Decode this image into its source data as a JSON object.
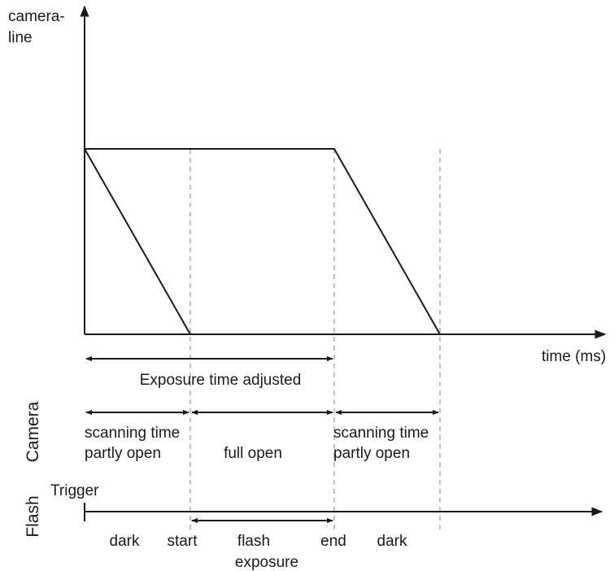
{
  "axes": {
    "y_label_line1": "camera-",
    "y_label_line2": "line",
    "x_label": "time (ms)"
  },
  "exposure": {
    "label": "Exposure time adjusted"
  },
  "camera": {
    "side_label": "Camera",
    "phase1_line1": "scanning time",
    "phase1_line2": "partly open",
    "phase2": "full open",
    "phase3_line1": "scanning time",
    "phase3_line2": "partly open"
  },
  "flash": {
    "side_label": "Flash",
    "trigger": "Trigger",
    "dark1": "dark",
    "start": "start",
    "exposure_line1": "flash",
    "exposure_line2": "exposure",
    "end": "end",
    "dark2": "dark"
  },
  "colors": {
    "line": "#1a1a1a",
    "dashed": "#9a9a9a"
  }
}
